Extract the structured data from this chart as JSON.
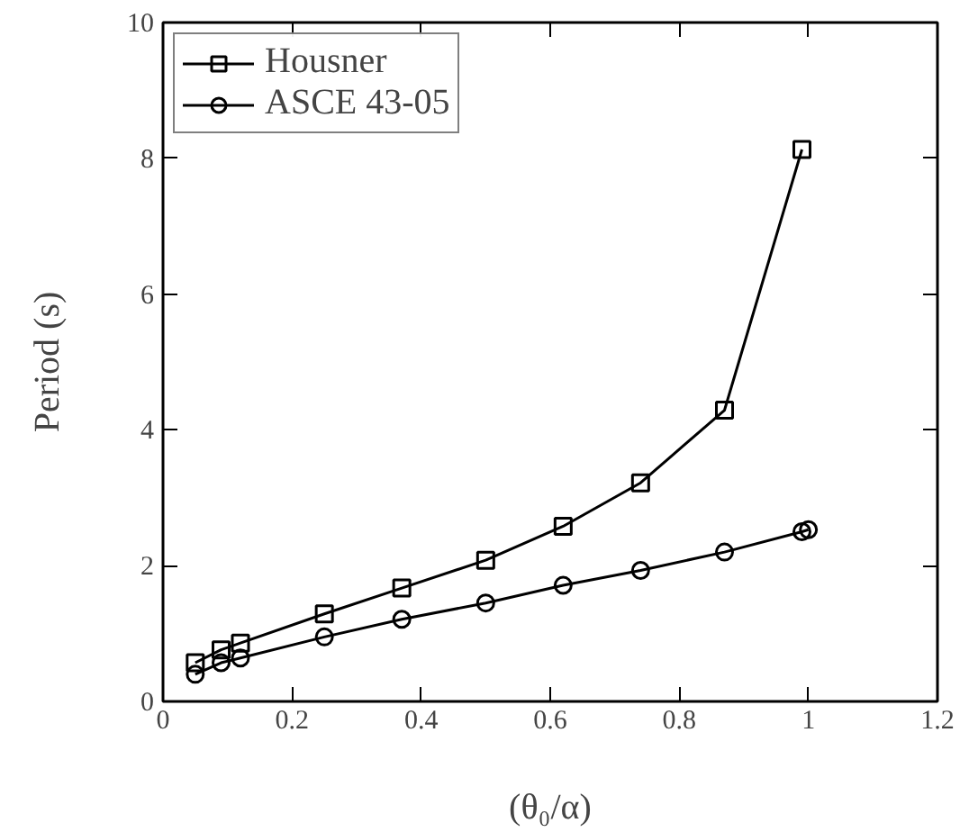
{
  "chart_data": {
    "type": "line",
    "xlabel": "(θ₀/α)",
    "ylabel": "Period (s)",
    "xlim": [
      0,
      1.2
    ],
    "ylim": [
      0,
      10
    ],
    "xticks": [
      0,
      0.2,
      0.4,
      0.6,
      0.8,
      1,
      1.2
    ],
    "yticks": [
      0,
      2,
      4,
      6,
      8,
      10
    ],
    "grid": false,
    "legend": "top left",
    "line_style": "solid",
    "series": [
      {
        "name": "Housner",
        "color": "#000000",
        "marker": "square",
        "x": [
          0.05,
          0.09,
          0.12,
          0.25,
          0.37,
          0.5,
          0.62,
          0.74,
          0.87,
          0.99
        ],
        "values": [
          0.57,
          0.76,
          0.86,
          1.29,
          1.67,
          2.08,
          2.58,
          3.22,
          4.29,
          8.13
        ]
      },
      {
        "name": "ASCE 43-05",
        "color": "#000000",
        "marker": "circle",
        "x": [
          0.05,
          0.09,
          0.12,
          0.25,
          0.37,
          0.5,
          0.62,
          0.74,
          0.87,
          0.99,
          1.0
        ],
        "values": [
          0.4,
          0.57,
          0.64,
          0.95,
          1.21,
          1.45,
          1.71,
          1.93,
          2.2,
          2.5,
          2.53
        ]
      }
    ]
  }
}
